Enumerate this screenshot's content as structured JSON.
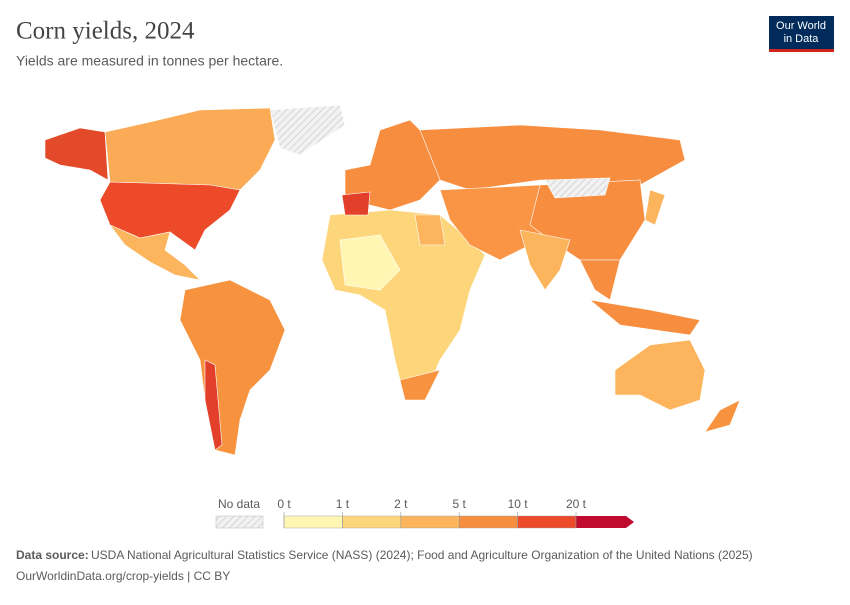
{
  "header": {
    "title": "Corn yields, 2024",
    "subtitle": "Yields are measured in tonnes per hectare.",
    "logo": [
      "Our World",
      "in Data"
    ]
  },
  "legend": {
    "no_data": "No data",
    "ticks": [
      {
        "value": 0,
        "label": "0 t"
      },
      {
        "value": 1,
        "label": "1 t"
      },
      {
        "value": 2,
        "label": "2 t"
      },
      {
        "value": 5,
        "label": "5 t"
      },
      {
        "value": 10,
        "label": "10 t"
      },
      {
        "value": 20,
        "label": "20 t"
      }
    ],
    "colors": [
      "#fff6b4",
      "#fdd67b",
      "#fcb55c",
      "#f78e3f",
      "#ec4a2a",
      "#bf0b2e"
    ]
  },
  "footer": {
    "source_label": "Data source:",
    "source": "USDA National Agricultural Statistics Service (NASS) (2024); Food and Agriculture Organization of the United Nations (2025)",
    "link": "OurWorldinData.org/crop-yields | CC BY"
  }
}
